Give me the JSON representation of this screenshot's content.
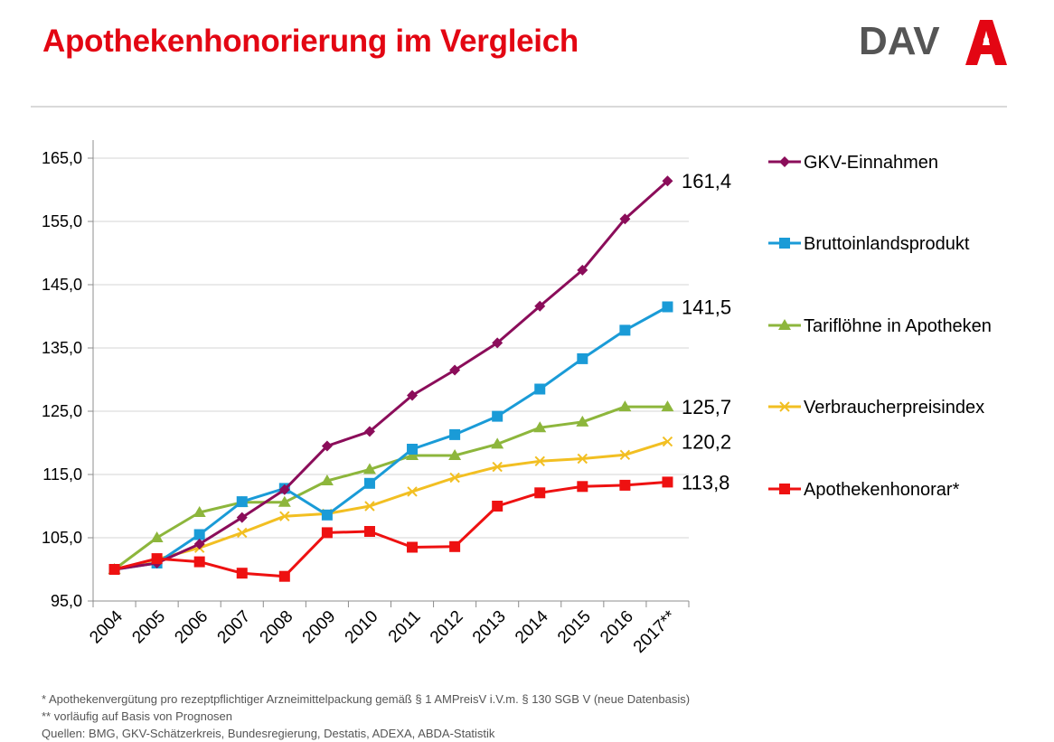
{
  "header": {
    "title": "Apothekenhonorierung im Vergleich",
    "logo_text": "DAV"
  },
  "colors": {
    "accent": "#e30613",
    "gkv": "#8b0d5a",
    "bip": "#1a9bd7",
    "tarif": "#8db63c",
    "vpi": "#f2bf22",
    "honorar": "#ee1111"
  },
  "chart_data": {
    "type": "line",
    "categories": [
      "2004",
      "2005",
      "2006",
      "2007",
      "2008",
      "2009",
      "2010",
      "2011",
      "2012",
      "2013",
      "2014",
      "2015",
      "2016",
      "2017**"
    ],
    "ylim": [
      95,
      165
    ],
    "yticks": [
      95,
      105,
      115,
      125,
      135,
      145,
      155,
      165
    ],
    "ytick_labels": [
      "95,0",
      "105,0",
      "115,0",
      "125,0",
      "135,0",
      "145,0",
      "155,0",
      "165,0"
    ],
    "grid": true,
    "legend_position": "right",
    "series": [
      {
        "key": "gkv",
        "name": "GKV-Einnahmen",
        "marker": "diamond",
        "end_label": "161,4",
        "values": [
          100.0,
          101.0,
          104.0,
          108.2,
          112.6,
          119.5,
          121.8,
          127.5,
          131.5,
          135.8,
          141.6,
          147.3,
          155.4,
          161.4
        ]
      },
      {
        "key": "bip",
        "name": "Bruttoinlandsprodukt",
        "marker": "square",
        "end_label": "141,5",
        "values": [
          100.0,
          101.0,
          105.5,
          110.7,
          112.8,
          108.6,
          113.6,
          119.0,
          121.3,
          124.2,
          128.5,
          133.3,
          137.8,
          141.5
        ]
      },
      {
        "key": "tarif",
        "name": "Tariflöhne in Apotheken",
        "marker": "triangle",
        "end_label": "125,7",
        "values": [
          100.0,
          105.0,
          109.0,
          110.6,
          110.6,
          114.0,
          115.8,
          118.0,
          118.0,
          119.8,
          122.4,
          123.3,
          125.7,
          125.7
        ]
      },
      {
        "key": "vpi",
        "name": "Verbraucherpreisindex",
        "marker": "x",
        "end_label": "120,2",
        "values": [
          100.0,
          101.6,
          103.4,
          105.8,
          108.4,
          108.8,
          110.0,
          112.3,
          114.5,
          116.2,
          117.1,
          117.5,
          118.1,
          120.2
        ]
      },
      {
        "key": "honorar",
        "name": "Apothekenhonorar*",
        "marker": "square",
        "end_label": "113,8",
        "values": [
          100.0,
          101.7,
          101.2,
          99.4,
          98.9,
          105.8,
          106.0,
          103.5,
          103.6,
          110.0,
          112.1,
          113.1,
          113.3,
          113.8
        ]
      }
    ]
  },
  "footnotes": {
    "note1": "* Apothekenvergütung  pro rezeptpflichtiger Arzneimittelpackung gemäß § 1 AMPreisV i.V.m. § 130 SGB V (neue Datenbasis)",
    "note2": "** vorläufig auf Basis von Prognosen",
    "sources": "Quellen: BMG, GKV-Schätzerkreis, Bundesregierung, Destatis, ADEXA, ABDA-Statistik"
  }
}
